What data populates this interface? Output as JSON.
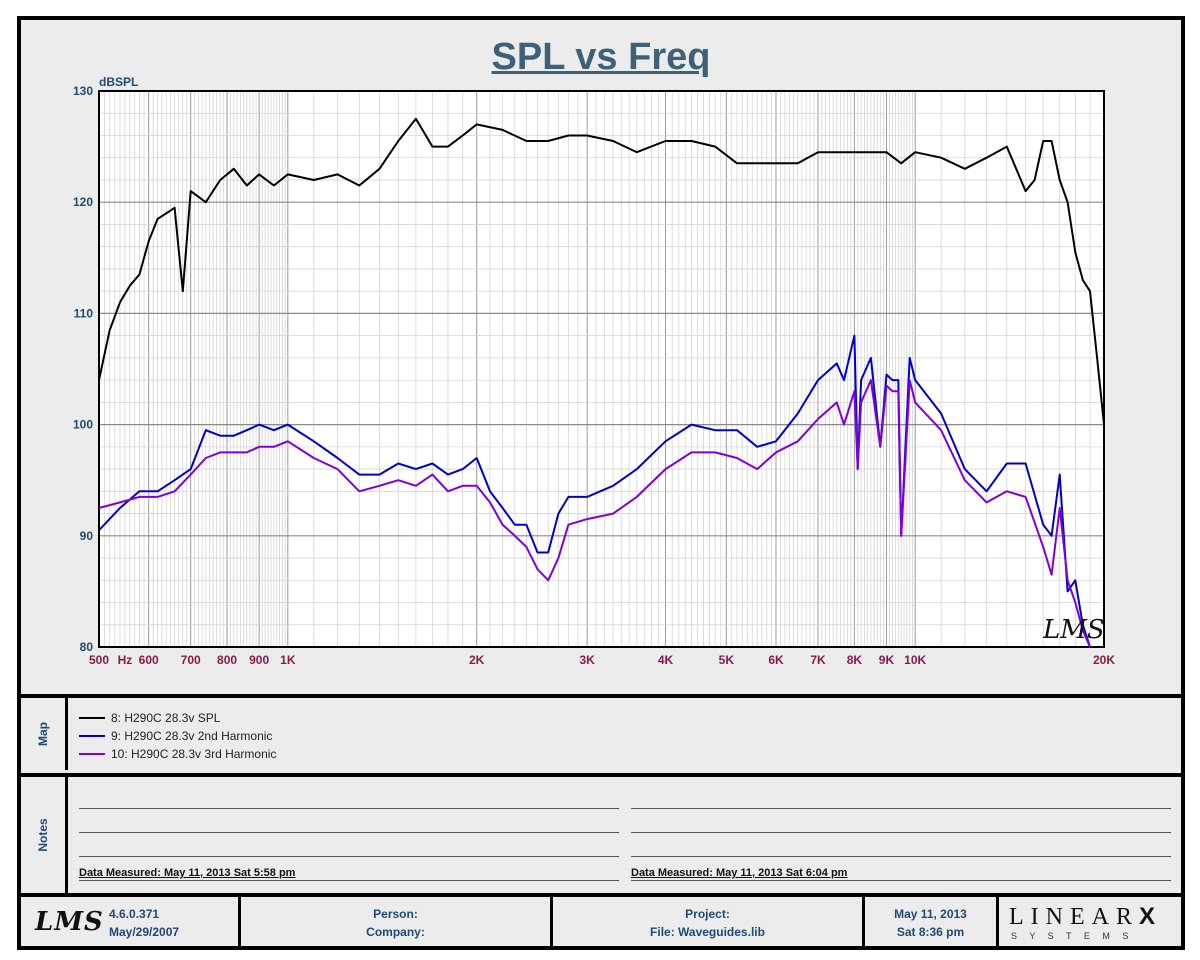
{
  "chart_data": {
    "type": "line",
    "title": "SPL vs Freq",
    "ylabel": "dBSPL",
    "xscale": "log",
    "xlim": [
      500,
      20000
    ],
    "ylim": [
      80,
      130
    ],
    "y_ticks": [
      80,
      90,
      100,
      110,
      120,
      130
    ],
    "x_ticks": [
      {
        "value": 500,
        "label": "500"
      },
      {
        "value": 550,
        "label": "Hz"
      },
      {
        "value": 600,
        "label": "600"
      },
      {
        "value": 700,
        "label": "700"
      },
      {
        "value": 800,
        "label": "800"
      },
      {
        "value": 900,
        "label": "900"
      },
      {
        "value": 1000,
        "label": "1K"
      },
      {
        "value": 2000,
        "label": "2K"
      },
      {
        "value": 3000,
        "label": "3K"
      },
      {
        "value": 4000,
        "label": "4K"
      },
      {
        "value": 5000,
        "label": "5K"
      },
      {
        "value": 6000,
        "label": "6K"
      },
      {
        "value": 7000,
        "label": "7K"
      },
      {
        "value": 8000,
        "label": "8K"
      },
      {
        "value": 9000,
        "label": "9K"
      },
      {
        "value": 10000,
        "label": "10K"
      },
      {
        "value": 20000,
        "label": "20K"
      }
    ],
    "grid": true,
    "series": [
      {
        "name": "8: H290C 28.3v SPL",
        "color": "#000000",
        "x": [
          500,
          520,
          540,
          560,
          580,
          600,
          620,
          640,
          660,
          680,
          700,
          740,
          780,
          820,
          860,
          900,
          950,
          1000,
          1100,
          1200,
          1300,
          1400,
          1500,
          1600,
          1700,
          1800,
          1900,
          2000,
          2200,
          2400,
          2600,
          2800,
          3000,
          3300,
          3600,
          4000,
          4400,
          4800,
          5200,
          5600,
          6000,
          6500,
          7000,
          7500,
          8000,
          8500,
          9000,
          9500,
          10000,
          11000,
          12000,
          13000,
          14000,
          15000,
          15500,
          16000,
          16500,
          17000,
          17500,
          18000,
          18500,
          19000,
          19500,
          20000
        ],
        "y": [
          104,
          108.5,
          111,
          112.5,
          113.5,
          116.5,
          118.5,
          119,
          119.5,
          112,
          121,
          120,
          122,
          123,
          121.5,
          122.5,
          121.5,
          122.5,
          122,
          122.5,
          121.5,
          123,
          125.5,
          127.5,
          125,
          125,
          126,
          127,
          126.5,
          125.5,
          125.5,
          126,
          126,
          125.5,
          124.5,
          125.5,
          125.5,
          125,
          123.5,
          123.5,
          123.5,
          123.5,
          124.5,
          124.5,
          124.5,
          124.5,
          124.5,
          123.5,
          124.5,
          124,
          123,
          124,
          125,
          121,
          122,
          125.5,
          125.5,
          122,
          120,
          115.5,
          113,
          112,
          106,
          100
        ]
      },
      {
        "name": "9: H290C 28.3v 2nd Harmonic",
        "color": "#0000c8",
        "x": [
          500,
          540,
          580,
          620,
          660,
          700,
          740,
          780,
          820,
          860,
          900,
          950,
          1000,
          1100,
          1200,
          1300,
          1400,
          1500,
          1600,
          1700,
          1800,
          1900,
          2000,
          2100,
          2200,
          2300,
          2400,
          2500,
          2600,
          2700,
          2800,
          3000,
          3300,
          3600,
          4000,
          4400,
          4800,
          5200,
          5600,
          6000,
          6500,
          7000,
          7500,
          7700,
          8000,
          8100,
          8200,
          8500,
          8800,
          9000,
          9200,
          9400,
          9500,
          9800,
          10000,
          11000,
          12000,
          13000,
          14000,
          15000,
          16000,
          16500,
          17000,
          17500,
          18000,
          18500,
          19000
        ],
        "y": [
          90.5,
          92.5,
          94,
          94,
          95,
          96,
          99.5,
          99,
          99,
          99.5,
          100,
          99.5,
          100,
          98.5,
          97,
          95.5,
          95.5,
          96.5,
          96,
          96.5,
          95.5,
          96,
          97,
          94,
          92.5,
          91,
          91,
          88.5,
          88.5,
          92,
          93.5,
          93.5,
          94.5,
          96,
          98.5,
          100,
          99.5,
          99.5,
          98,
          98.5,
          101,
          104,
          105.5,
          104,
          108,
          96,
          104,
          106,
          98,
          104.5,
          104,
          104,
          90,
          106,
          104,
          101,
          96,
          94,
          96.5,
          96.5,
          91,
          90,
          95.5,
          85,
          86,
          82,
          80
        ]
      },
      {
        "name": "10: H290C 28.3v 3rd Harmonic",
        "color": "#8000d8",
        "x": [
          500,
          540,
          580,
          620,
          660,
          700,
          740,
          780,
          820,
          860,
          900,
          950,
          1000,
          1100,
          1200,
          1300,
          1400,
          1500,
          1600,
          1700,
          1800,
          1900,
          2000,
          2100,
          2200,
          2300,
          2400,
          2500,
          2600,
          2700,
          2800,
          3000,
          3300,
          3600,
          4000,
          4400,
          4800,
          5200,
          5600,
          6000,
          6500,
          7000,
          7500,
          7700,
          8000,
          8100,
          8200,
          8500,
          8800,
          9000,
          9200,
          9400,
          9500,
          9800,
          10000,
          11000,
          12000,
          13000,
          14000,
          15000,
          16000,
          16500,
          17000,
          17500,
          18000,
          18500,
          19000
        ],
        "y": [
          92.5,
          93,
          93.5,
          93.5,
          94,
          95.5,
          97,
          97.5,
          97.5,
          97.5,
          98,
          98,
          98.5,
          97,
          96,
          94,
          94.5,
          95,
          94.5,
          95.5,
          94,
          94.5,
          94.5,
          93,
          91,
          90,
          89,
          87,
          86,
          88,
          91,
          91.5,
          92,
          93.5,
          96,
          97.5,
          97.5,
          97,
          96,
          97.5,
          98.5,
          100.5,
          102,
          100,
          103,
          96,
          102,
          104,
          98,
          103.5,
          103,
          103,
          90,
          104,
          102,
          99.5,
          95,
          93,
          94,
          93.5,
          89,
          86.5,
          92.5,
          86,
          84,
          81.5,
          80
        ]
      }
    ]
  },
  "map_label": "Map",
  "notes_label": "Notes",
  "notes": {
    "left_measured": "Data Measured: May 11, 2013  Sat  5:58 pm",
    "right_measured": "Data Measured: May 11, 2013  Sat  6:04 pm"
  },
  "watermark": "LMS",
  "footer": {
    "logo": "LMS",
    "version": "4.6.0.371",
    "version_date": "May/29/2007",
    "person_label": "Person:",
    "company_label": "Company:",
    "project_label": "Project:",
    "file_label": "File: Waveguides.lib",
    "date": "May 11, 2013",
    "time": "Sat  8:36 pm",
    "brand": "LINEAR",
    "brand_x": "X",
    "brand_sub": "S Y S T E M S"
  }
}
